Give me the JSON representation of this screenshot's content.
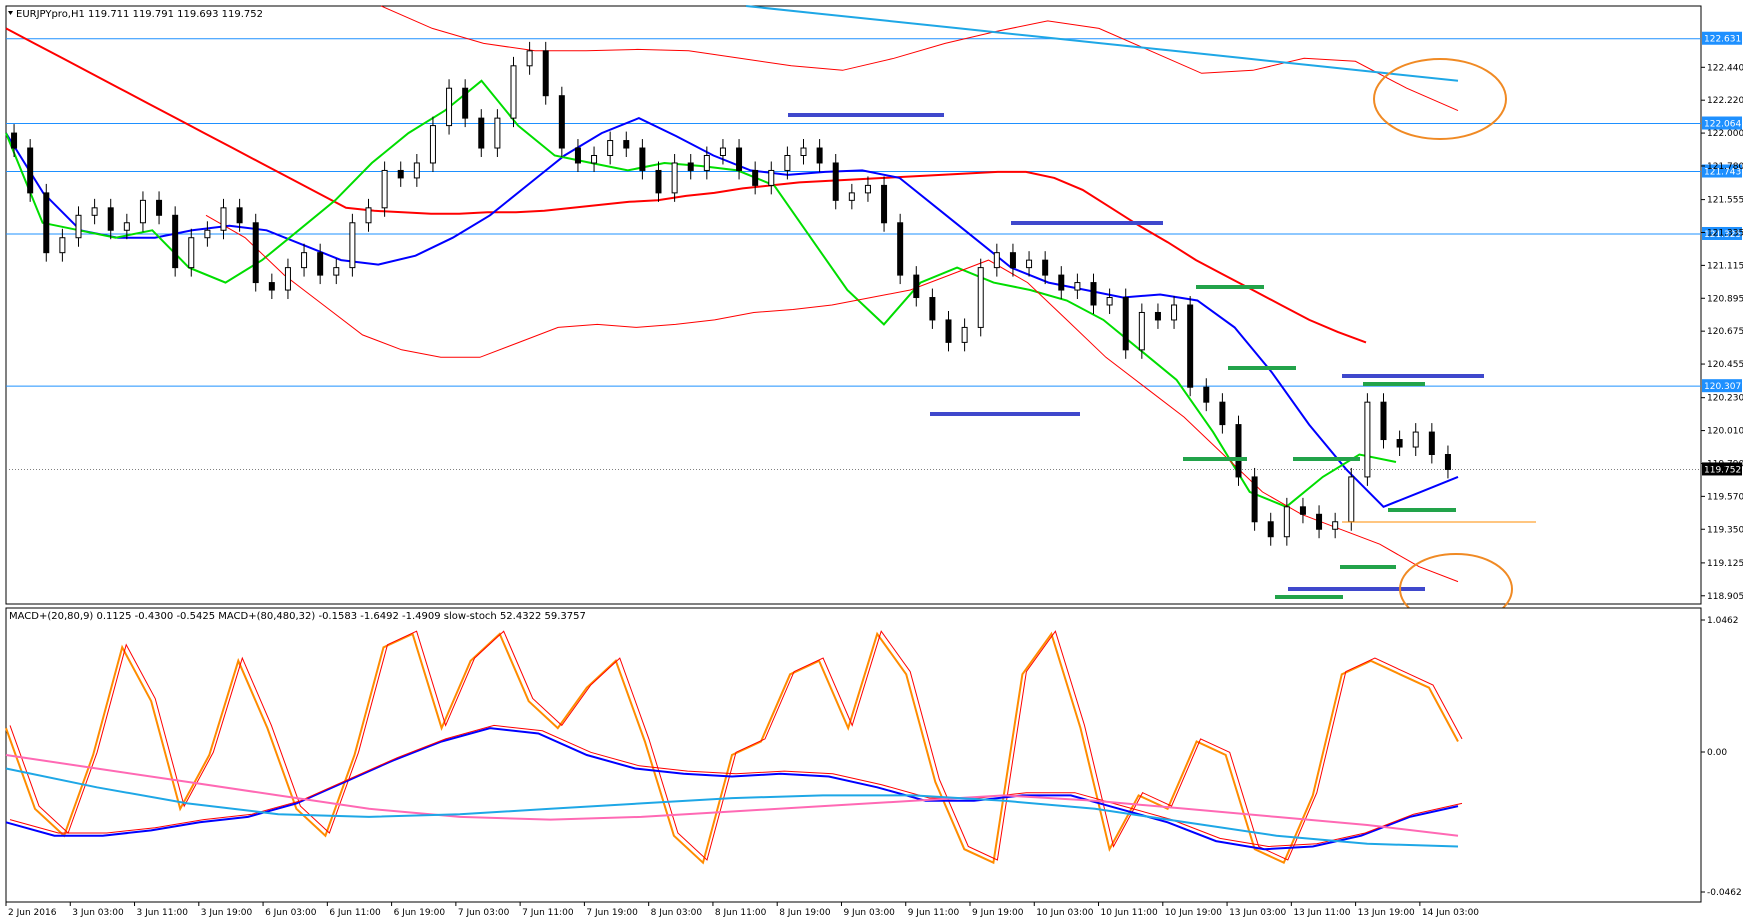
{
  "chart_data": [
    {
      "type": "candlestick",
      "title": "EURJPYpro,H1  119.711 119.791 119.693 119.752",
      "symbol": "EURJPYpro",
      "timeframe": "H1",
      "ohlc_header": [
        119.711,
        119.791,
        119.693,
        119.752
      ],
      "current_price_label": "119.752",
      "ylim": [
        118.85,
        122.85
      ],
      "yticks": [
        "122.440",
        "122.220",
        "122.000",
        "121.780",
        "121.555",
        "121.335",
        "121.115",
        "120.895",
        "120.675",
        "120.455",
        "120.230",
        "120.010",
        "119.790",
        "119.570",
        "119.350",
        "119.125",
        "118.905"
      ],
      "xticks": [
        "2 Jun 2016",
        "3 Jun 03:00",
        "3 Jun 11:00",
        "3 Jun 19:00",
        "6 Jun 03:00",
        "6 Jun 11:00",
        "6 Jun 19:00",
        "7 Jun 03:00",
        "7 Jun 11:00",
        "7 Jun 19:00",
        "8 Jun 03:00",
        "8 Jun 11:00",
        "8 Jun 19:00",
        "9 Jun 03:00",
        "9 Jun 11:00",
        "9 Jun 19:00",
        "10 Jun 03:00",
        "10 Jun 11:00",
        "10 Jun 19:00",
        "13 Jun 03:00",
        "13 Jun 11:00",
        "13 Jun 19:00",
        "14 Jun 03:00"
      ],
      "horizontal_levels": [
        {
          "value": 122.631,
          "label": "122.631",
          "color": "#1e90ff"
        },
        {
          "value": 122.064,
          "label": "122.064",
          "color": "#1e90ff"
        },
        {
          "value": 121.743,
          "label": "121.743",
          "color": "#1e90ff"
        },
        {
          "value": 121.325,
          "label": "121.325",
          "color": "#1e90ff"
        },
        {
          "value": 120.307,
          "label": "120.307",
          "color": "#1e90ff"
        }
      ],
      "close_series": [
        121.9,
        121.6,
        121.2,
        121.3,
        121.45,
        121.5,
        121.35,
        121.4,
        121.55,
        121.45,
        121.1,
        121.3,
        121.35,
        121.5,
        121.4,
        121.0,
        120.95,
        121.1,
        121.2,
        121.05,
        121.1,
        121.4,
        121.5,
        121.75,
        121.7,
        121.8,
        122.05,
        122.3,
        122.1,
        121.9,
        122.1,
        122.45,
        122.55,
        122.25,
        121.9,
        121.8,
        121.85,
        121.95,
        121.9,
        121.75,
        121.6,
        121.8,
        121.75,
        121.85,
        121.9,
        121.75,
        121.65,
        121.75,
        121.85,
        121.9,
        121.8,
        121.55,
        121.6,
        121.65,
        121.4,
        121.05,
        120.9,
        120.75,
        120.6,
        120.7,
        121.1,
        121.2,
        121.1,
        121.15,
        121.05,
        120.95,
        121.0,
        120.85,
        120.9,
        120.55,
        120.8,
        120.75,
        120.85,
        120.3,
        120.2,
        120.05,
        119.7,
        119.4,
        119.3,
        119.5,
        119.45,
        119.35,
        119.4,
        119.7,
        120.2,
        119.95,
        119.9,
        120.0,
        119.85,
        119.75
      ],
      "series": [
        {
          "name": "",
          "color": "#ff0000",
          "values": [
            122.7,
            122.6,
            122.5,
            122.4,
            122.3,
            122.2,
            122.1,
            122.0,
            121.9,
            121.8,
            121.7,
            121.6,
            121.5,
            121.48,
            121.47,
            121.46,
            121.46,
            121.47,
            121.47,
            121.48,
            121.5,
            121.52,
            121.54,
            121.55,
            121.58,
            121.6,
            121.63,
            121.65,
            121.67,
            121.68,
            121.69,
            121.7,
            121.71,
            121.72,
            121.73,
            121.74,
            121.74,
            121.7,
            121.62,
            121.5,
            121.38,
            121.27,
            121.15,
            121.05,
            120.95,
            120.85,
            120.75,
            120.67,
            120.6
          ]
        },
        {
          "name": "",
          "color": "#0000ff",
          "values": [
            122.0,
            121.6,
            121.35,
            121.3,
            121.3,
            121.35,
            121.38,
            121.35,
            121.25,
            121.15,
            121.12,
            121.18,
            121.3,
            121.45,
            121.65,
            121.85,
            122.0,
            122.1,
            121.98,
            121.85,
            121.75,
            121.72,
            121.74,
            121.75,
            121.7,
            121.5,
            121.3,
            121.1,
            121.0,
            120.95,
            120.9,
            120.92,
            120.88,
            120.7,
            120.4,
            120.05,
            119.75,
            119.5,
            119.6,
            119.7
          ]
        },
        {
          "name": "",
          "color": "#00dd00",
          "values": [
            122.0,
            121.4,
            121.35,
            121.3,
            121.35,
            121.1,
            121.0,
            121.15,
            121.35,
            121.55,
            121.8,
            122.0,
            122.15,
            122.35,
            122.05,
            121.85,
            121.8,
            121.75,
            121.8,
            121.78,
            121.75,
            121.65,
            121.3,
            120.95,
            120.72,
            121.0,
            121.1,
            121.0,
            120.95,
            120.88,
            120.75,
            120.55,
            120.35,
            120.0,
            119.6,
            119.5,
            119.7,
            119.85,
            119.8
          ]
        },
        {
          "name": "",
          "color": "#ff0000",
          "values": [
            121.45,
            121.3,
            121.05,
            120.85,
            120.65,
            120.55,
            120.5,
            120.5,
            120.6,
            120.7,
            120.72,
            120.7,
            120.72,
            120.75,
            120.8,
            120.82,
            120.85,
            120.9,
            120.95,
            121.05,
            121.15,
            121.0,
            120.75,
            120.5,
            120.3,
            120.1,
            119.85,
            119.6,
            119.45,
            119.35,
            119.25,
            119.1,
            119.0
          ]
        },
        {
          "name": "",
          "color": "#ff0000",
          "values": [
            122.85,
            122.7,
            122.6,
            122.55,
            122.55,
            122.56,
            122.55,
            122.5,
            122.45,
            122.42,
            122.5,
            122.6,
            122.68,
            122.75,
            122.7,
            122.55,
            122.4,
            122.42,
            122.5,
            122.48,
            122.3,
            122.15
          ]
        },
        {
          "name": "",
          "color": "#1ea7e6",
          "values": [
            122.85,
            122.8,
            122.75,
            122.7,
            122.65,
            122.6,
            122.55,
            122.5,
            122.45,
            122.4,
            122.35
          ]
        }
      ]
    },
    {
      "type": "line",
      "title": "MACD+(20,80,9) 0.1125 -0.4300 -0.5425  MACD+(80,480,32) -0.1583 -1.6492 -1.4909  slow-stoch 52.4322 59.3757",
      "ylim": [
        -0.0462,
        1.0462
      ],
      "yticks": [
        "1.0462",
        "0.00",
        "-0.0462"
      ],
      "series": [
        {
          "name": "",
          "color": "#ff8c00",
          "values": [
            0.6,
            0.3,
            0.2,
            0.5,
            0.9,
            0.7,
            0.3,
            0.5,
            0.85,
            0.6,
            0.3,
            0.2,
            0.5,
            0.9,
            0.95,
            0.6,
            0.85,
            0.95,
            0.7,
            0.6,
            0.75,
            0.85,
            0.55,
            0.2,
            0.1,
            0.5,
            0.55,
            0.8,
            0.85,
            0.6,
            0.95,
            0.8,
            0.4,
            0.15,
            0.1,
            0.8,
            0.95,
            0.6,
            0.15,
            0.35,
            0.3,
            0.55,
            0.5,
            0.15,
            0.1,
            0.35,
            0.8,
            0.85,
            0.8,
            0.75,
            0.55
          ]
        },
        {
          "name": "",
          "color": "#0000ff",
          "values": [
            0.25,
            0.2,
            0.2,
            0.22,
            0.25,
            0.27,
            0.32,
            0.4,
            0.48,
            0.55,
            0.6,
            0.58,
            0.5,
            0.45,
            0.43,
            0.42,
            0.43,
            0.42,
            0.38,
            0.33,
            0.33,
            0.35,
            0.35,
            0.3,
            0.25,
            0.18,
            0.15,
            0.16,
            0.2,
            0.27,
            0.31
          ]
        },
        {
          "name": "",
          "color": "#ff69b4",
          "values": [
            0.5,
            0.45,
            0.4,
            0.35,
            0.3,
            0.27,
            0.26,
            0.27,
            0.29,
            0.31,
            0.33,
            0.35,
            0.33,
            0.3,
            0.27,
            0.24,
            0.2
          ]
        },
        {
          "name": "",
          "color": "#1ea7e6",
          "values": [
            0.45,
            0.38,
            0.32,
            0.28,
            0.27,
            0.28,
            0.3,
            0.32,
            0.34,
            0.35,
            0.35,
            0.33,
            0.3,
            0.25,
            0.2,
            0.17,
            0.16
          ]
        }
      ]
    }
  ]
}
